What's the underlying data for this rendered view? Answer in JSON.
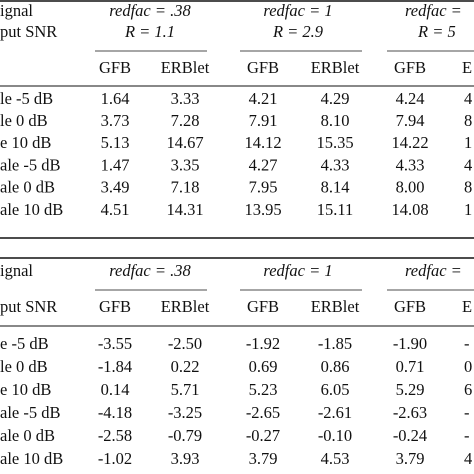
{
  "tables": [
    {
      "first_header": [
        "ignal",
        "put SNR"
      ],
      "groups": [
        {
          "line1": "redfac = .38",
          "line2": "R = 1.1"
        },
        {
          "line1": "redfac = 1",
          "line2": "R = 2.9"
        },
        {
          "line1": "redfac = ",
          "line2": "R = 5"
        }
      ],
      "subheaders": [
        "GFB",
        "ERBlet",
        "GFB",
        "ERBlet",
        "GFB",
        "E"
      ],
      "rows": [
        {
          "label": "le -5 dB",
          "cells": [
            "1.64",
            "3.33",
            "4.21",
            "4.29",
            "4.24",
            "4"
          ]
        },
        {
          "label": "le 0 dB",
          "cells": [
            "3.73",
            "7.28",
            "7.91",
            "8.10",
            "7.94",
            "8"
          ]
        },
        {
          "label": "e 10 dB",
          "cells": [
            "5.13",
            "14.67",
            "14.12",
            "15.35",
            "14.22",
            "1"
          ]
        },
        {
          "label": "ale -5 dB",
          "cells": [
            "1.47",
            "3.35",
            "4.27",
            "4.33",
            "4.33",
            "4"
          ]
        },
        {
          "label": "ale 0 dB",
          "cells": [
            "3.49",
            "7.18",
            "7.95",
            "8.14",
            "8.00",
            "8"
          ]
        },
        {
          "label": "ale 10 dB",
          "cells": [
            "4.51",
            "14.31",
            "13.95",
            "15.11",
            "14.08",
            "1"
          ]
        }
      ]
    },
    {
      "first_header": [
        "ignal",
        "put SNR"
      ],
      "groups": [
        {
          "line1": "redfac = .38"
        },
        {
          "line1": "redfac = 1"
        },
        {
          "line1": "redfac = "
        }
      ],
      "subheaders": [
        "GFB",
        "ERBlet",
        "GFB",
        "ERBlet",
        "GFB",
        "E"
      ],
      "rows": [
        {
          "label": "e -5 dB",
          "cells": [
            "-3.55",
            "-2.50",
            "-1.92",
            "-1.85",
            "-1.90",
            "-"
          ]
        },
        {
          "label": "le 0 dB",
          "cells": [
            "-1.84",
            "0.22",
            "0.69",
            "0.86",
            "0.71",
            "0"
          ]
        },
        {
          "label": "e 10 dB",
          "cells": [
            "0.14",
            "5.71",
            "5.23",
            "6.05",
            "5.29",
            "6"
          ]
        },
        {
          "label": "ale -5 dB",
          "cells": [
            "-4.18",
            "-3.25",
            "-2.65",
            "-2.61",
            "-2.63",
            "-"
          ]
        },
        {
          "label": "ale 0 dB",
          "cells": [
            "-2.58",
            "-0.79",
            "-0.27",
            "-0.10",
            "-0.24",
            "-"
          ]
        },
        {
          "label": "ale 10 dB",
          "cells": [
            "-1.02",
            "3.93",
            "3.79",
            "4.53",
            "3.79",
            "4"
          ]
        }
      ]
    }
  ]
}
